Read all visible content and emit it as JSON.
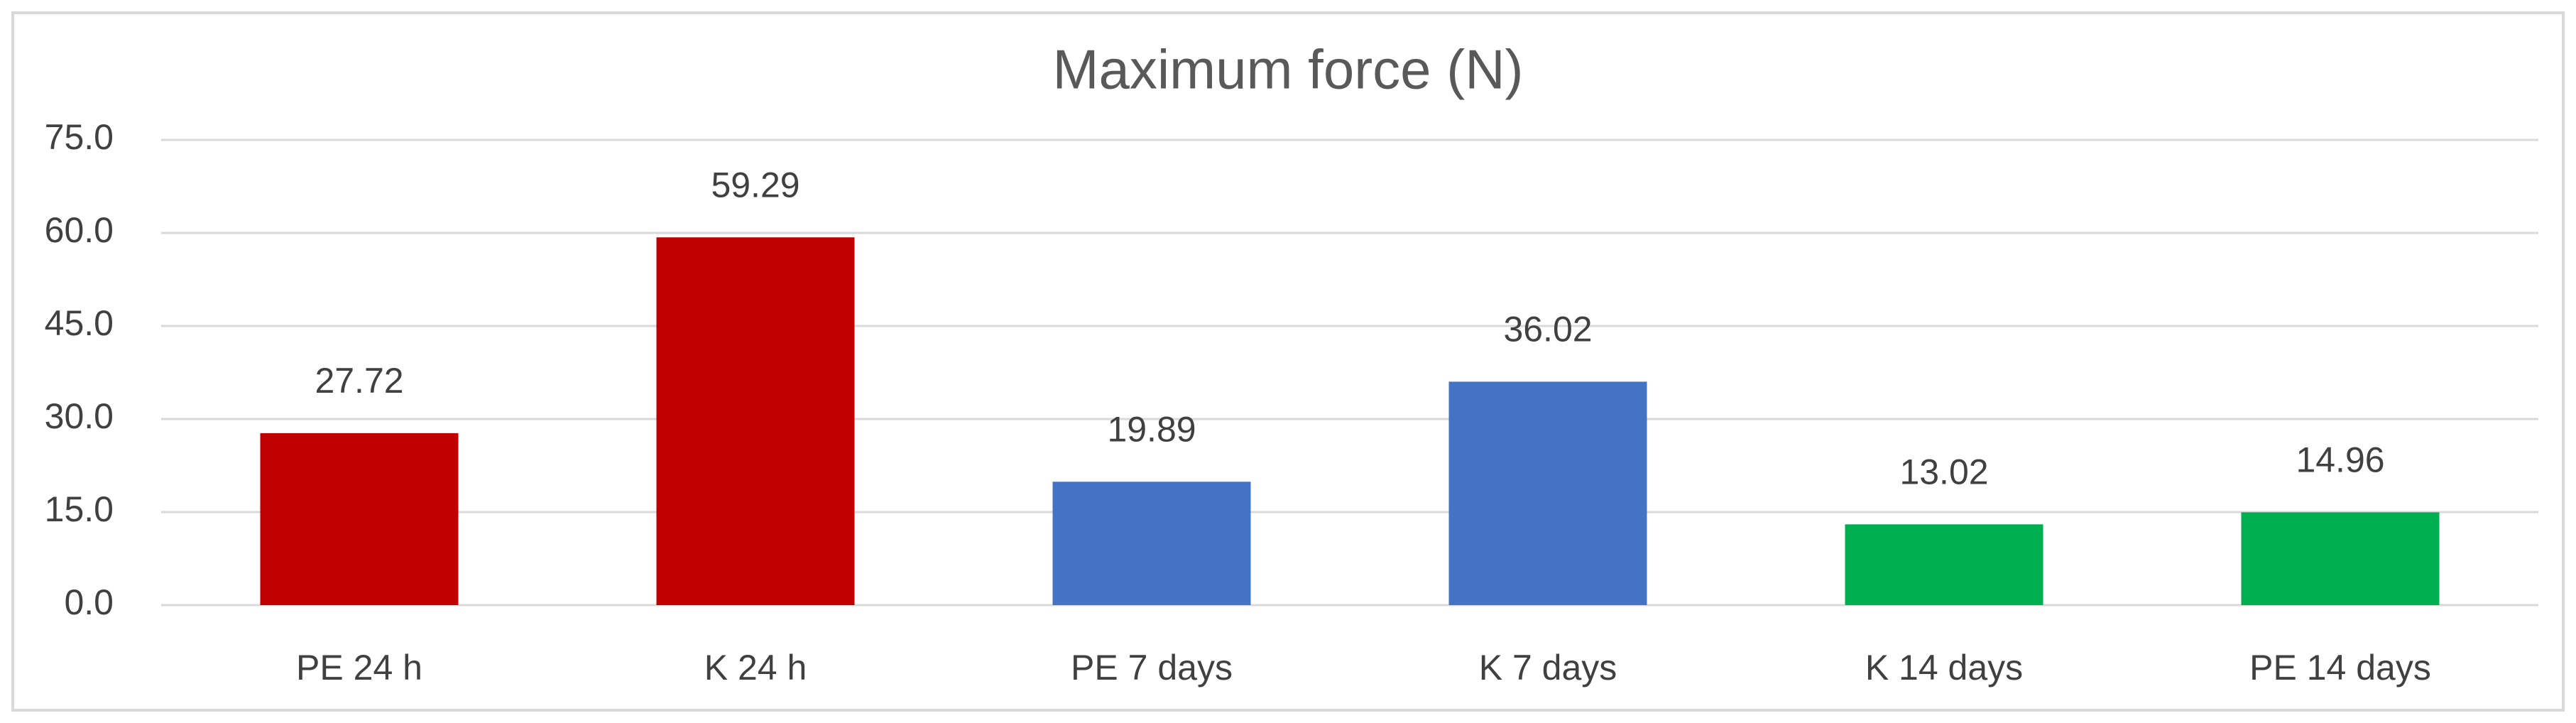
{
  "chart_data": {
    "type": "bar",
    "title": "Maximum force (N)",
    "categories": [
      "PE 24 h",
      "K 24 h",
      "PE 7 days",
      "K 7 days",
      "K 14 days",
      "PE 14 days"
    ],
    "values": [
      27.72,
      59.29,
      19.89,
      36.02,
      13.02,
      14.96
    ],
    "colors": [
      "#c00000",
      "#c00000",
      "#4472c4",
      "#4472c4",
      "#00b050",
      "#00b050"
    ],
    "ylim": [
      0,
      75
    ],
    "yticks": [
      {
        "value": 0,
        "label": "0.0"
      },
      {
        "value": 15,
        "label": "15.0"
      },
      {
        "value": 30,
        "label": "30.0"
      },
      {
        "value": 45,
        "label": "45.0"
      },
      {
        "value": 60,
        "label": "60.0"
      },
      {
        "value": 75,
        "label": "75.0"
      }
    ],
    "grid": true
  }
}
